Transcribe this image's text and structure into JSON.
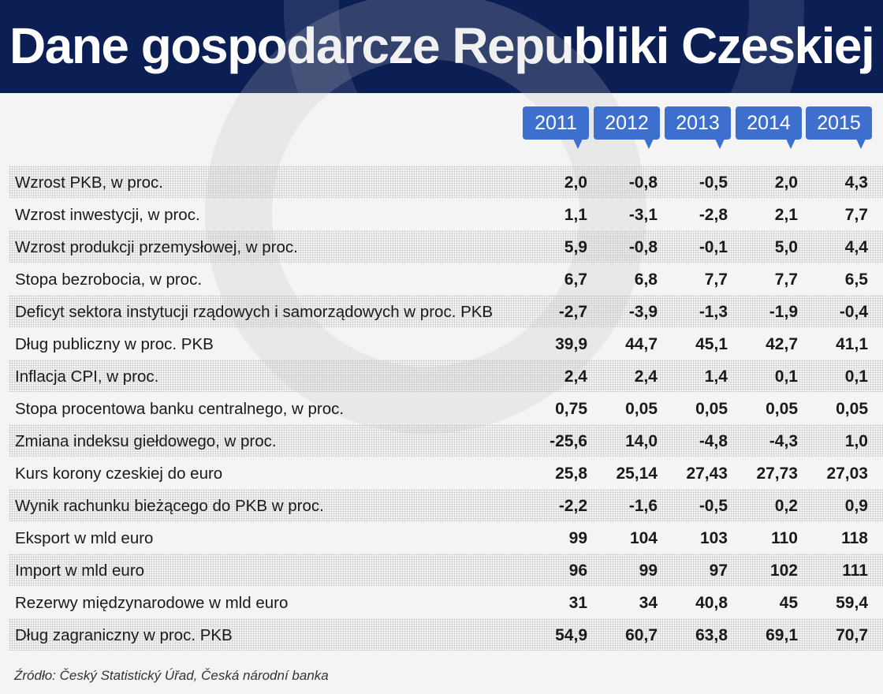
{
  "title": "Dane gospodarcze Republiki Czeskiej",
  "colors": {
    "header_bg": "#0b1f55",
    "year_badge": "#3d6fcf"
  },
  "chart_data": {
    "type": "table",
    "columns": [
      "2011",
      "2012",
      "2013",
      "2014",
      "2015"
    ],
    "rows": [
      {
        "label": "Wzrost PKB, w proc.",
        "values": [
          "2,0",
          "-0,8",
          "-0,5",
          "2,0",
          "4,3"
        ]
      },
      {
        "label": "Wzrost inwestycji, w proc.",
        "values": [
          "1,1",
          "-3,1",
          "-2,8",
          "2,1",
          "7,7"
        ]
      },
      {
        "label": "Wzrost produkcji przemysłowej, w proc.",
        "values": [
          "5,9",
          "-0,8",
          "-0,1",
          "5,0",
          "4,4"
        ]
      },
      {
        "label": "Stopa bezrobocia, w proc.",
        "values": [
          "6,7",
          "6,8",
          "7,7",
          "7,7",
          "6,5"
        ]
      },
      {
        "label": "Deficyt sektora instytucji rządowych i samorządowych w proc. PKB",
        "values": [
          "-2,7",
          "-3,9",
          "-1,3",
          "-1,9",
          "-0,4"
        ]
      },
      {
        "label": "Dług publiczny w proc. PKB",
        "values": [
          "39,9",
          "44,7",
          "45,1",
          "42,7",
          "41,1"
        ]
      },
      {
        "label": "Inflacja CPI, w proc.",
        "values": [
          "2,4",
          "2,4",
          "1,4",
          "0,1",
          "0,1"
        ]
      },
      {
        "label": "Stopa procentowa banku centralnego, w proc.",
        "values": [
          "0,75",
          "0,05",
          "0,05",
          "0,05",
          "0,05"
        ]
      },
      {
        "label": "Zmiana indeksu giełdowego, w proc.",
        "values": [
          "-25,6",
          "14,0",
          "-4,8",
          "-4,3",
          "1,0"
        ]
      },
      {
        "label": "Kurs korony czeskiej do euro",
        "values": [
          "25,8",
          "25,14",
          "27,43",
          "27,73",
          "27,03"
        ]
      },
      {
        "label": "Wynik rachunku bieżącego do PKB w proc.",
        "values": [
          "-2,2",
          "-1,6",
          "-0,5",
          "0,2",
          "0,9"
        ]
      },
      {
        "label": "Eksport w mld euro",
        "values": [
          "99",
          "104",
          "103",
          "110",
          "118"
        ]
      },
      {
        "label": "Import w mld euro",
        "values": [
          "96",
          "99",
          "97",
          "102",
          "111"
        ]
      },
      {
        "label": "Rezerwy międzynarodowe w mld euro",
        "values": [
          "31",
          "34",
          "40,8",
          "45",
          "59,4"
        ]
      },
      {
        "label": "Dług zagraniczny w proc. PKB",
        "values": [
          "54,9",
          "60,7",
          "63,8",
          "69,1",
          "70,7"
        ]
      }
    ]
  },
  "source": "Źródło: Český Statistický Úřad, Česká národní banka"
}
